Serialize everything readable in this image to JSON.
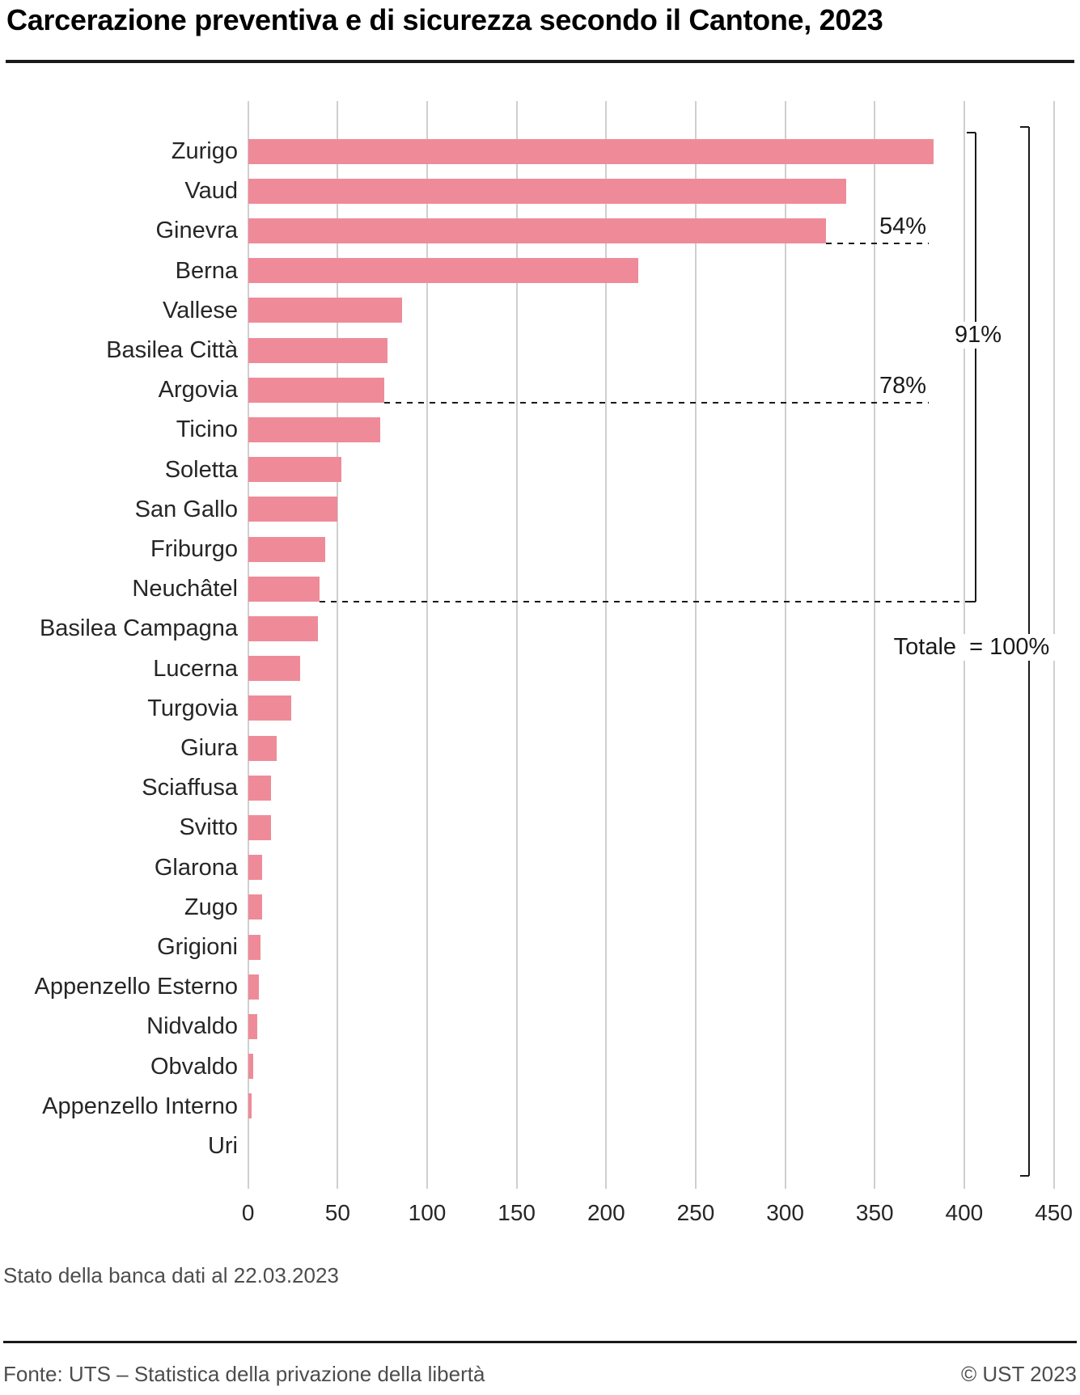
{
  "header": {
    "title": "Carcerazione preventiva e di sicurezza secondo il Cantone, 2023"
  },
  "chart_data": {
    "type": "bar",
    "orientation": "horizontal",
    "title": "Carcerazione preventiva e di sicurezza secondo il Cantone, 2023",
    "categories": [
      "Zurigo",
      "Vaud",
      "Ginevra",
      "Berna",
      "Vallese",
      "Basilea Città",
      "Argovia",
      "Ticino",
      "Soletta",
      "San Gallo",
      "Friburgo",
      "Neuchâtel",
      "Basilea Campagna",
      "Lucerna",
      "Turgovia",
      "Giura",
      "Sciaffusa",
      "Svitto",
      "Glarona",
      "Zugo",
      "Grigioni",
      "Appenzello Esterno",
      "Nidvaldo",
      "Obvaldo",
      "Appenzello Interno",
      "Uri"
    ],
    "values": [
      383,
      334,
      323,
      218,
      86,
      78,
      76,
      74,
      52,
      50,
      43,
      40,
      39,
      29,
      24,
      16,
      13,
      13,
      8,
      8,
      7,
      6,
      5,
      3,
      2,
      0
    ],
    "xlabel": "",
    "ylabel": "",
    "xlim": [
      0,
      450
    ],
    "x_ticks": [
      0,
      50,
      100,
      150,
      200,
      250,
      300,
      350,
      400,
      450
    ],
    "grid": "vertical",
    "legend": "none",
    "colors": {
      "bar": "#EF8B99",
      "grid": "#CFCFCF",
      "annotation": "#1A1A1A",
      "muted_text": "#4D4D4D"
    },
    "annotations": [
      {
        "label": "54%",
        "style": "dashed-line",
        "anchor_row": "Ginevra"
      },
      {
        "label": "78%",
        "style": "dashed-line",
        "anchor_row": "Argovia"
      },
      {
        "label": "91%",
        "style": "bracket-dashed-line",
        "anchor_row_top": "Zurigo",
        "anchor_row_bottom": "Neuchâtel"
      },
      {
        "label": "Totale  = 100%",
        "style": "bracket",
        "anchor_row_top": "Zurigo",
        "anchor_row_bottom": "Uri"
      }
    ]
  },
  "status_note": "Stato della banca dati al 22.03.2023",
  "footer": {
    "source": "Fonte: UTS – Statistica della privazione della libertà",
    "copyright": "© UST 2023"
  }
}
